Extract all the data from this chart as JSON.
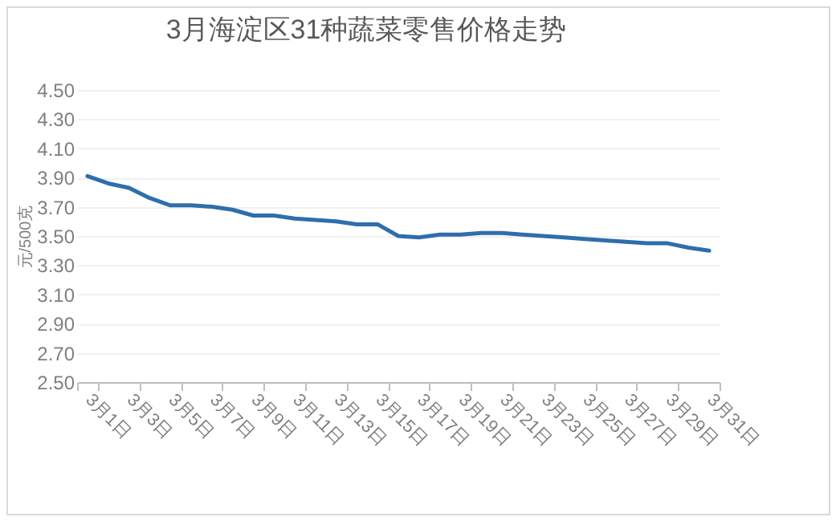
{
  "chart_data": {
    "type": "line",
    "title": "3月海淀区31种蔬菜零售价格走势",
    "ylabel": "元/500克",
    "categories": [
      "3月1日",
      null,
      "3月3日",
      null,
      "3月5日",
      null,
      "3月7日",
      null,
      "3月9日",
      null,
      "3月11日",
      null,
      "3月13日",
      null,
      "3月15日",
      null,
      "3月17日",
      null,
      "3月19日",
      null,
      "3月21日",
      null,
      "3月23日",
      null,
      "3月25日",
      null,
      "3月27日",
      null,
      "3月29日",
      null,
      "3月31日"
    ],
    "series": [
      {
        "color": "#2e6eac",
        "values": [
          3.91,
          3.86,
          3.83,
          3.76,
          3.71,
          3.71,
          3.7,
          3.68,
          3.64,
          3.64,
          3.62,
          3.61,
          3.6,
          3.58,
          3.58,
          3.5,
          3.49,
          3.51,
          3.51,
          3.52,
          3.52,
          3.51,
          3.5,
          3.49,
          3.48,
          3.47,
          3.46,
          3.45,
          3.45,
          3.42,
          3.4
        ]
      }
    ],
    "ylim": [
      2.5,
      4.5
    ],
    "yticks": [
      {
        "value": 2.5,
        "label": "2.50"
      },
      {
        "value": 2.7,
        "label": "2.70"
      },
      {
        "value": 2.9,
        "label": "2.90"
      },
      {
        "value": 3.1,
        "label": "3.10"
      },
      {
        "value": 3.3,
        "label": "3.30"
      },
      {
        "value": 3.5,
        "label": "3.50"
      },
      {
        "value": 3.7,
        "label": "3.70"
      },
      {
        "value": 3.9,
        "label": "3.90"
      },
      {
        "value": 4.1,
        "label": "4.10"
      },
      {
        "value": 4.3,
        "label": "4.30"
      },
      {
        "value": 4.5,
        "label": "4.50"
      }
    ],
    "grid": "y"
  }
}
